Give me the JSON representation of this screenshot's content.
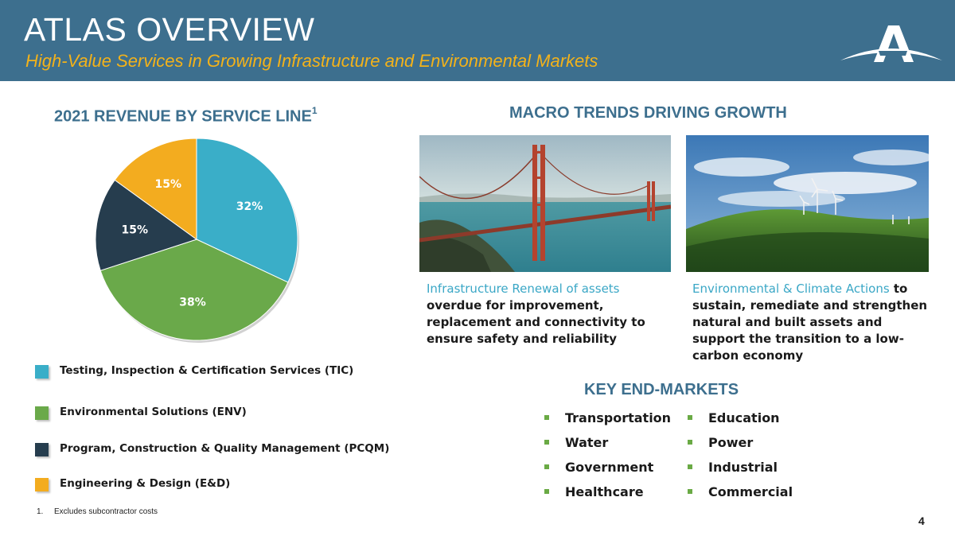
{
  "header": {
    "title": "ATLAS OVERVIEW",
    "subtitle": "High-Value Services in Growing Infrastructure and Environmental Markets"
  },
  "revenue": {
    "heading": "2021 REVENUE BY SERVICE LINE",
    "heading_footnote_marker": "1"
  },
  "chart_data": {
    "type": "pie",
    "title": "2021 REVENUE BY SERVICE LINE",
    "categories": [
      "Testing, Inspection & Certification Services (TIC)",
      "Environmental Solutions (ENV)",
      "Program, Construction & Quality Management (PCQM)",
      "Engineering & Design (E&D)"
    ],
    "values": [
      32,
      38,
      15,
      15
    ],
    "labels": [
      "32%",
      "38%",
      "15%",
      "15%"
    ],
    "colors": [
      "#3aaec8",
      "#6aa94a",
      "#263d4e",
      "#f3ac1f"
    ],
    "label_colors": [
      "#ffffff",
      "#ffffff",
      "#ffffff",
      "#ffffff"
    ],
    "start_angle_deg": 0,
    "direction": "clockwise"
  },
  "legend": [
    {
      "label": "Testing, Inspection & Certification Services (TIC)",
      "color": "#3aaec8"
    },
    {
      "label": "Environmental Solutions (ENV)",
      "color": "#6aa94a"
    },
    {
      "label": "Program, Construction & Quality Management (PCQM)",
      "color": "#263d4e"
    },
    {
      "label": "Engineering & Design (E&D)",
      "color": "#f3ac1f"
    }
  ],
  "footnote": {
    "number": "1.",
    "text": "Excludes subcontractor costs"
  },
  "macro": {
    "heading": "MACRO TRENDS DRIVING GROWTH",
    "infrastructure": {
      "accent": "Infrastructure Renewal of assets",
      "body": "overdue for improvement, replacement and connectivity to ensure safety and reliability"
    },
    "environmental": {
      "accent": "Environmental & Climate Actions",
      "body": "to sustain, remediate and strengthen natural and built assets and support the transition to a low-carbon economy"
    }
  },
  "end_markets": {
    "heading": "KEY END-MARKETS",
    "items": [
      "Transportation",
      "Education",
      "Water",
      "Power",
      "Government",
      "Industrial",
      "Healthcare",
      "Commercial"
    ]
  },
  "page_number": "4",
  "colors": {
    "header_bg": "#3d6f8e",
    "subtitle": "#f3b21a",
    "heading": "#3d6f8e",
    "accent_text": "#3aa7c6",
    "bullet": "#6aaa45"
  }
}
